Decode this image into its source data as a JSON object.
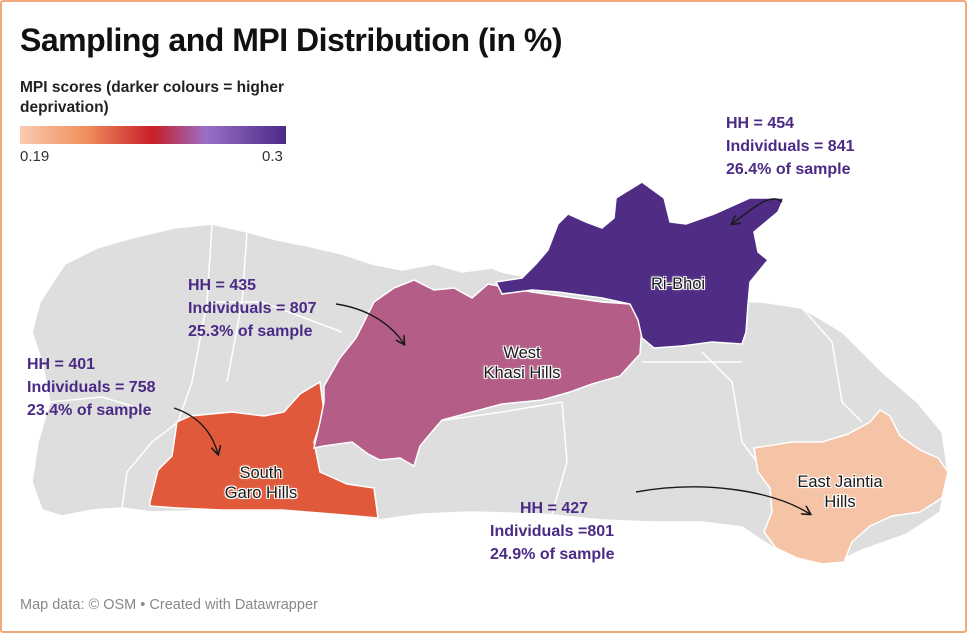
{
  "title": "Sampling and MPI Distribution (in %)",
  "legend": {
    "title": "MPI scores (darker colours = higher deprivation)",
    "min_label": "0.19",
    "max_label": "0.3",
    "min": 0.19,
    "max": 0.3,
    "colors": [
      "#f8cbb0",
      "#ef8f5c",
      "#c81e28",
      "#9a6fc8",
      "#4a2a86"
    ]
  },
  "regions": [
    {
      "id": "ri-bhoi",
      "name": "Ri-Bhoi",
      "color": "#4f2d85"
    },
    {
      "id": "west-khasi-hills",
      "name": "West\nKhasi Hills",
      "name_line1": "West",
      "name_line2": "Khasi Hills",
      "color": "#b35d87"
    },
    {
      "id": "south-garo-hills",
      "name": "South\nGaro Hills",
      "name_line1": "South",
      "name_line2": "Garo Hills",
      "color": "#e0593a"
    },
    {
      "id": "east-jaintia-hills",
      "name": "East Jaintia\nHills",
      "name_line1": "East Jaintia",
      "name_line2": "Hills",
      "color": "#f5c4a6"
    }
  ],
  "annotations": {
    "ri_bhoi": {
      "line1": "HH = 454",
      "line2": "Individuals = 841",
      "line3": "26.4% of sample"
    },
    "west_khasi": {
      "line1": "HH = 435",
      "line2": "Individuals = 807",
      "line3": "25.3% of sample"
    },
    "south_garo": {
      "line1": "HH = 401",
      "line2": "Individuals = 758",
      "line3": "23.4% of sample"
    },
    "east_jaintia": {
      "line1": "HH = 427",
      "line2": "Individuals =801",
      "line3": "24.9% of sample"
    }
  },
  "footer": {
    "text": "Map data: © OSM  • Created with Datawrapper"
  }
}
